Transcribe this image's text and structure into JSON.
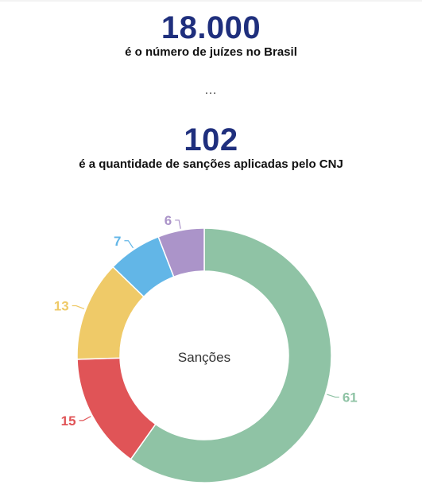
{
  "stats": {
    "judges_count": "18.000",
    "judges_label": "é o número de juízes no Brasil",
    "separator": "…",
    "sanctions_count": "102",
    "sanctions_label": "é a quantidade de sanções aplicadas pelo CNJ"
  },
  "chart_data": {
    "type": "pie",
    "donut": true,
    "center_label": "Sanções",
    "slices": [
      {
        "value": 61,
        "label": "61",
        "color": "#8fc3a5"
      },
      {
        "value": 15,
        "label": "15",
        "color": "#e05457"
      },
      {
        "value": 13,
        "label": "13",
        "color": "#efca68"
      },
      {
        "value": 7,
        "label": "7",
        "color": "#62b6e7"
      },
      {
        "value": 6,
        "label": "6",
        "color": "#ab94c9"
      }
    ]
  }
}
